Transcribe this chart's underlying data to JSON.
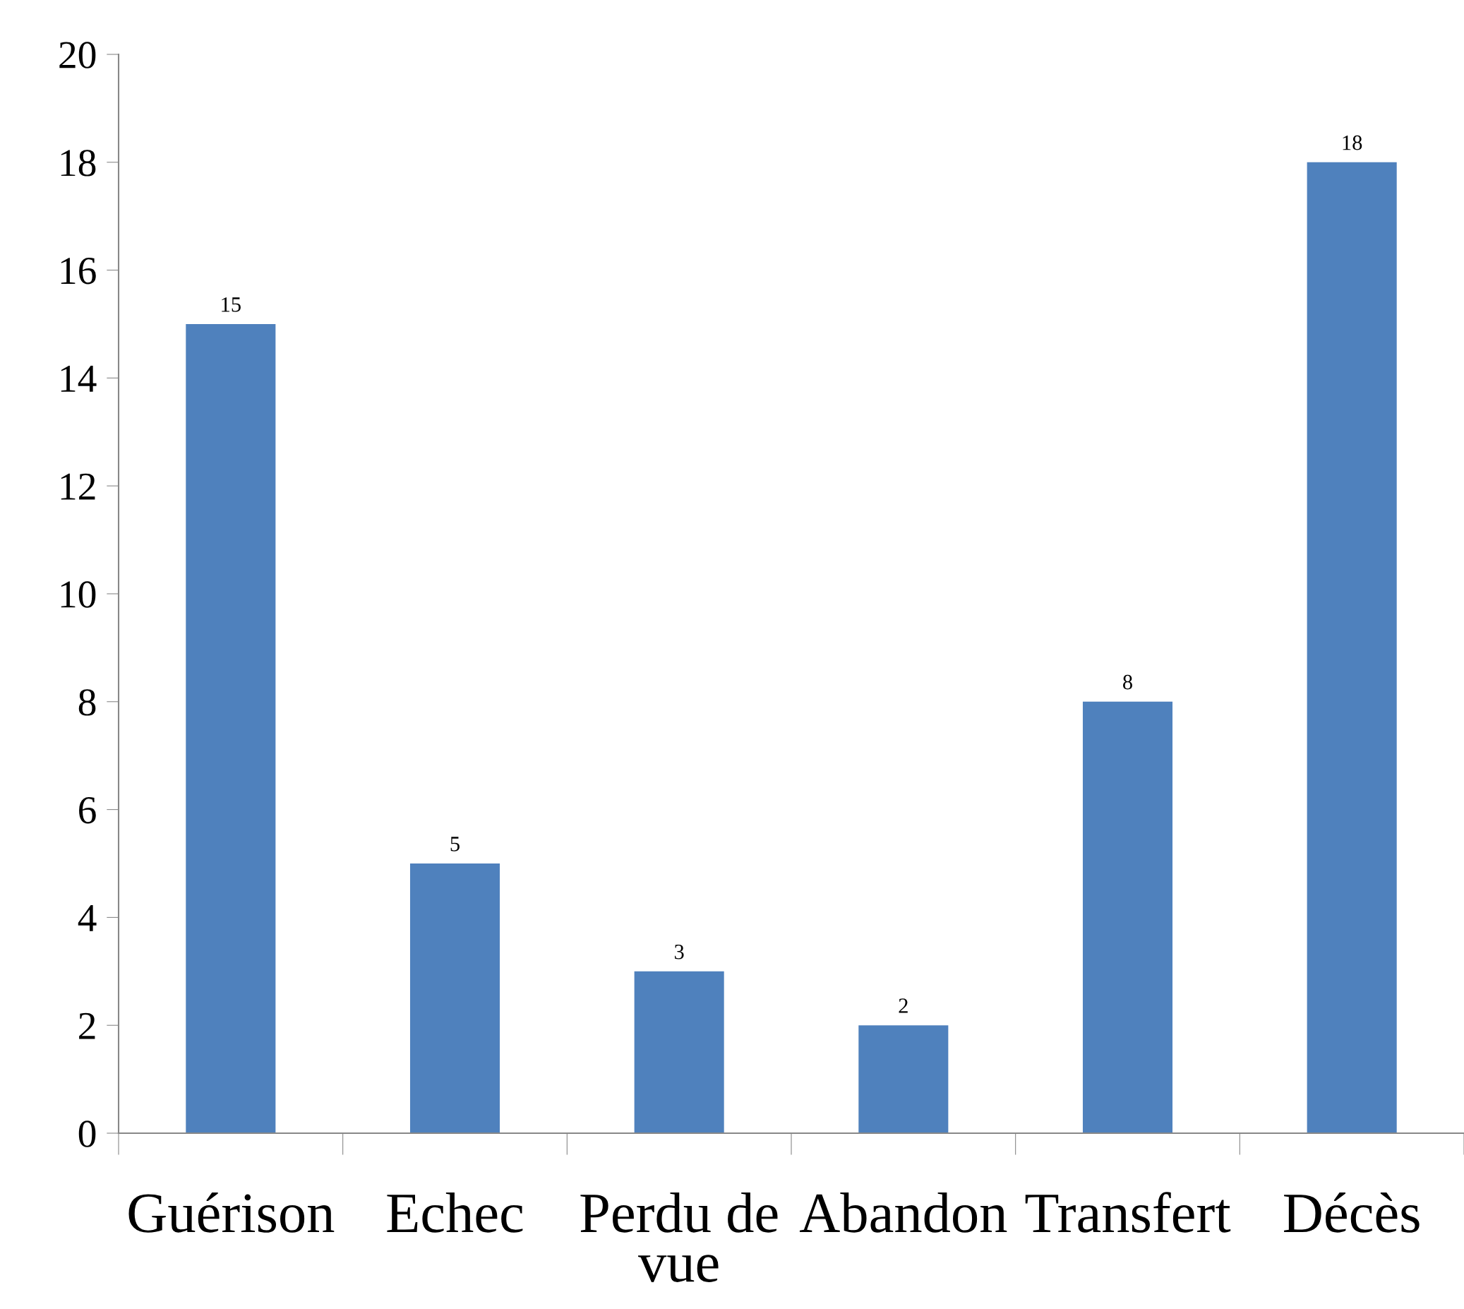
{
  "chart_data": {
    "type": "bar",
    "categories": [
      "Guérison",
      "Echec",
      "Perdu de vue",
      "Abandon",
      "Transfert",
      "Décès"
    ],
    "values": [
      15,
      5,
      3,
      2,
      8,
      18
    ],
    "color": "#4f81bd",
    "ylim": [
      0,
      20
    ],
    "yticks": [
      0,
      2,
      4,
      6,
      8,
      10,
      12,
      14,
      16,
      18,
      20
    ],
    "data_labels": true,
    "grid": false,
    "legend": false
  }
}
